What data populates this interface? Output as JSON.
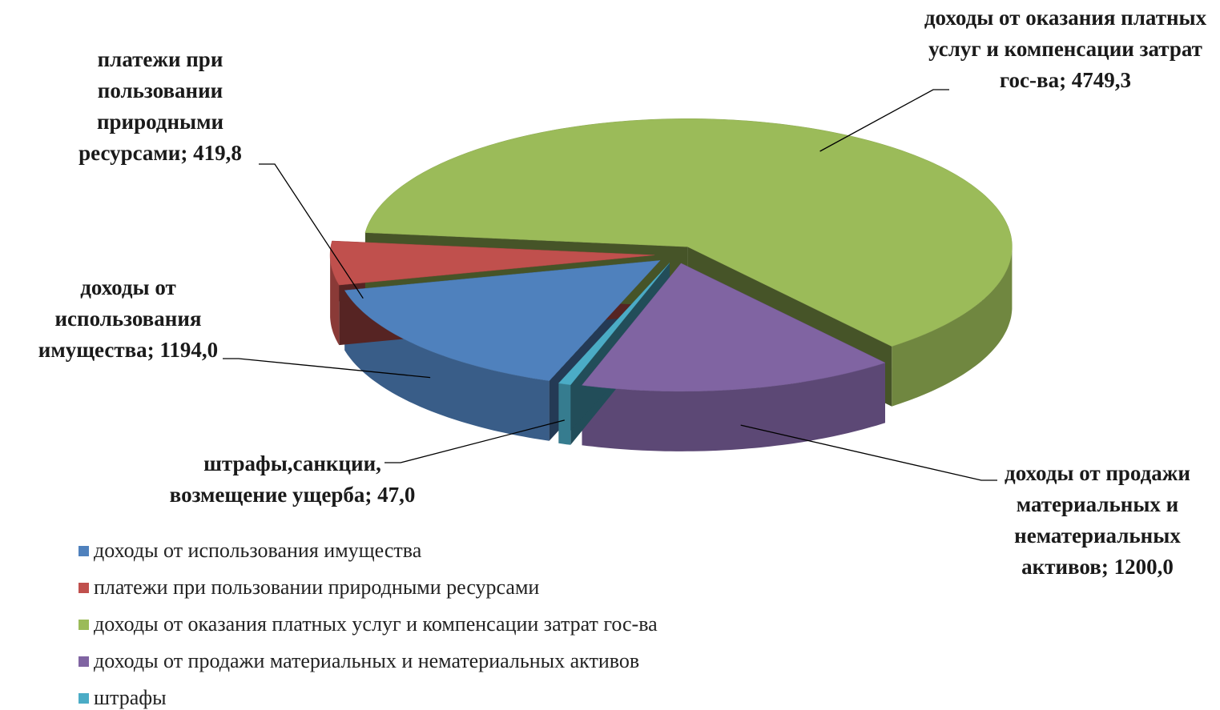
{
  "chart_data": {
    "type": "pie",
    "categories": [
      "доходы от использования имущества",
      "платежи при пользовании природными ресурсами",
      "доходы от оказания платных услуг и компенсации затрат гос-ва",
      "доходы от продажи материальных и нематериальных активов",
      "штрафы"
    ],
    "values": [
      1194.0,
      419.8,
      4749.3,
      1200.0,
      47.0
    ],
    "value_labels": [
      "доходы от использования имущества; 1194,0",
      "платежи при пользовании природными ресурсами; 419,8",
      "доходы от оказания платных услуг и компенсации затрат гос-ва; 4749,3",
      "доходы от продажи материальных и нематериальных активов; 1200,0",
      "штрафы,санкции, возмещение ущерба; 47,0"
    ],
    "colors": [
      "#4f81bd",
      "#c0504d",
      "#9bbb59",
      "#8064a2",
      "#4bacc6"
    ],
    "legend": "bottom-left"
  }
}
